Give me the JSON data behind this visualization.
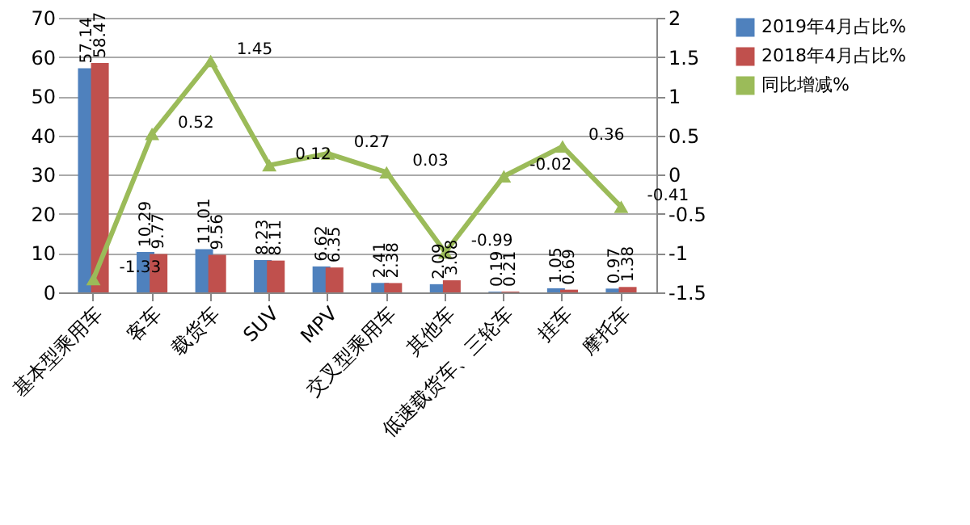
{
  "chart_data": {
    "type": "bar",
    "categories": [
      "基本型乘用车",
      "客车",
      "载货车",
      "SUV",
      "MPV",
      "交叉型乘用车",
      "其他车",
      "低速载货车、三轮车",
      "挂车",
      "摩托车"
    ],
    "series": [
      {
        "name": "2019年4月占比%",
        "color": "#4f81bd",
        "values": [
          57.14,
          10.29,
          11.01,
          8.23,
          6.62,
          2.41,
          2.09,
          0.19,
          1.05,
          0.97
        ]
      },
      {
        "name": "2018年4月占比%",
        "color": "#c0504d",
        "values": [
          58.47,
          9.77,
          9.56,
          8.11,
          6.35,
          2.38,
          3.08,
          0.21,
          0.69,
          1.38
        ]
      },
      {
        "name": "同比增减%",
        "type": "line",
        "axis": "y2",
        "color": "#9bbb59",
        "values": [
          -1.33,
          0.52,
          1.45,
          0.12,
          0.27,
          0.03,
          -0.99,
          -0.02,
          0.36,
          -0.41
        ]
      }
    ],
    "ylim": [
      0,
      70
    ],
    "yticks": [
      0,
      10,
      20,
      30,
      40,
      50,
      60,
      70
    ],
    "y2lim": [
      -1.5,
      2
    ],
    "y2ticks": [
      -1.5,
      -1,
      -0.5,
      0,
      0.5,
      1,
      1.5,
      2
    ],
    "data_labels": true,
    "grid": "y",
    "legend": "right",
    "marker": "triangle"
  }
}
